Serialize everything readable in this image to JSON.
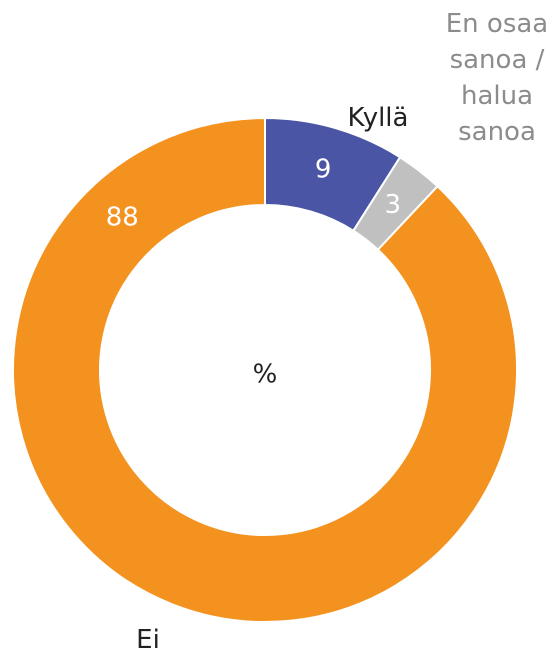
{
  "chart_data": {
    "type": "donut",
    "center_label": "%",
    "categories": [
      "Kyllä",
      "En osaa sanoa / halua sanoa",
      "Ei"
    ],
    "values": [
      9,
      3,
      88
    ],
    "colors": [
      "#4a55a5",
      "#c0c0c0",
      "#f4921f"
    ],
    "label_colors": [
      "#222222",
      "#8c8c8c",
      "#222222"
    ]
  }
}
